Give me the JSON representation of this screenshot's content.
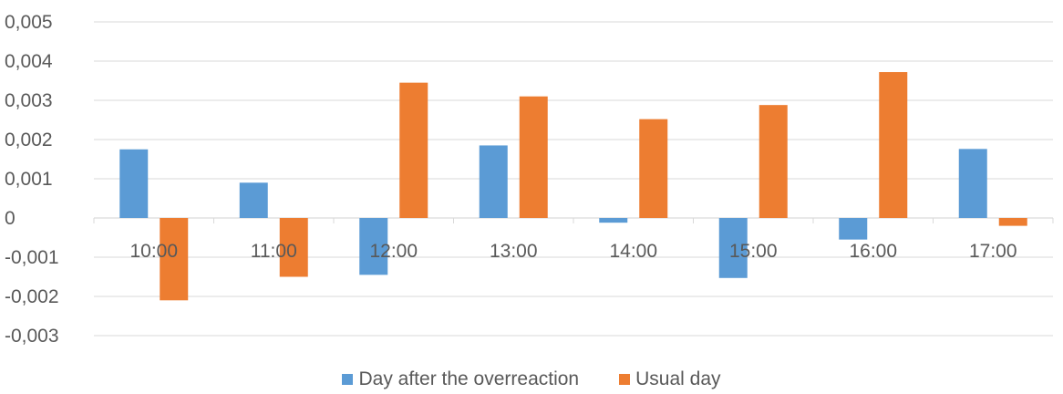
{
  "chart_data": {
    "type": "bar",
    "categories": [
      "10:00",
      "11:00",
      "12:00",
      "13:00",
      "14:00",
      "15:00",
      "16:00",
      "17:00"
    ],
    "series": [
      {
        "name": "Day after the overreaction",
        "color": "#5b9bd5",
        "values": [
          0.00175,
          0.0009,
          -0.00145,
          0.00185,
          -0.00012,
          -0.00153,
          -0.00055,
          0.00176
        ]
      },
      {
        "name": "Usual day",
        "color": "#ed7d31",
        "values": [
          -0.0021,
          -0.0015,
          0.00345,
          0.0031,
          0.00252,
          0.00288,
          0.00372,
          -0.0002
        ]
      }
    ],
    "yticks": [
      "-0,003",
      "-0,002",
      "-0,001",
      "0",
      "0,001",
      "0,002",
      "0,003",
      "0,004",
      "0,005"
    ],
    "ylim": [
      -0.003,
      0.005
    ],
    "legend_position": "bottom",
    "grid": true
  }
}
